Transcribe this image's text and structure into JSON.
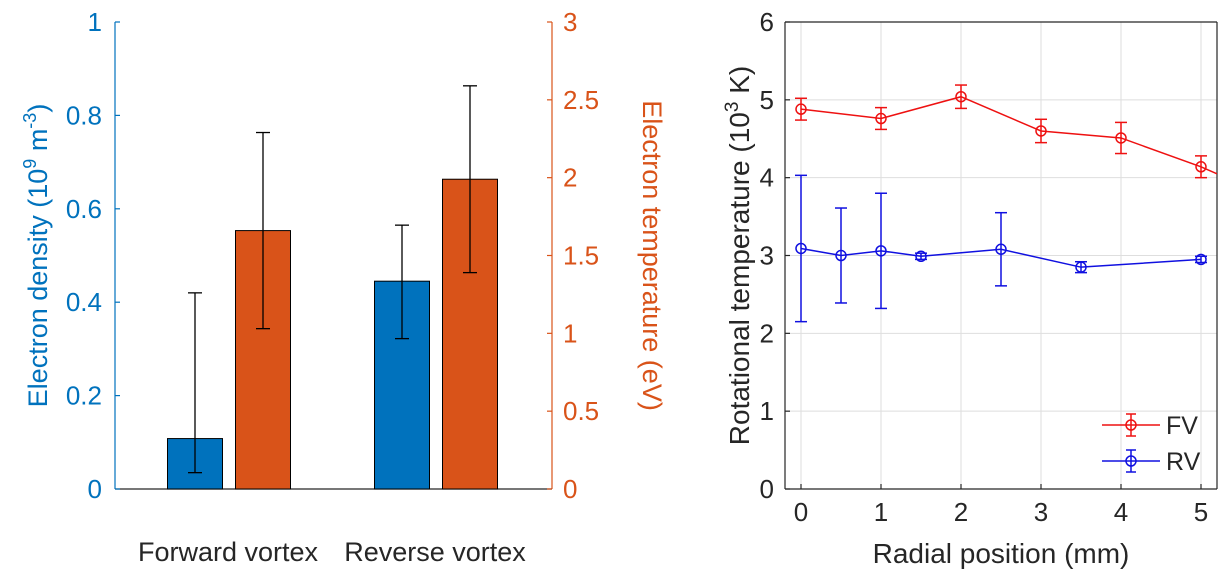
{
  "chart_data": [
    {
      "type": "bar",
      "categories": [
        "Forward vortex",
        "Reverse vortex"
      ],
      "series": [
        {
          "axis": "left",
          "color": "#0072BD",
          "values": [
            0.108,
            0.445
          ],
          "error_low": [
            0.035,
            0.322
          ],
          "error_high": [
            0.42,
            0.565
          ]
        },
        {
          "axis": "right",
          "color": "#D95319",
          "values": [
            1.66,
            1.99
          ],
          "error_low": [
            1.03,
            1.39
          ],
          "error_high": [
            2.29,
            2.59
          ]
        }
      ],
      "y_left": {
        "label_parts": [
          "Electron density (10",
          "9",
          " m",
          "-3",
          ")"
        ],
        "lim": [
          0,
          1
        ],
        "ticks": [
          "0",
          "0.2",
          "0.4",
          "0.6",
          "0.8",
          "1"
        ],
        "color": "#0072BD"
      },
      "y_right": {
        "label": "Electron temperature (eV)",
        "lim": [
          0,
          3
        ],
        "ticks": [
          "0",
          "0.5",
          "1",
          "1.5",
          "2",
          "2.5",
          "3"
        ],
        "color": "#D95319"
      }
    },
    {
      "type": "line",
      "xlabel": "Radial position (mm)",
      "ylabel_parts": [
        "Rotational temperature (10",
        "3",
        " K)"
      ],
      "xlim": [
        -0.2,
        5.2
      ],
      "ylim": [
        0,
        6
      ],
      "xticks": [
        "0",
        "1",
        "2",
        "3",
        "4",
        "5"
      ],
      "yticks": [
        "0",
        "1",
        "2",
        "3",
        "4",
        "5",
        "6"
      ],
      "grid": true,
      "legend_position": "bottom-right",
      "series": [
        {
          "name": "FV",
          "color": "#EE1111",
          "x": [
            0,
            1,
            2,
            3,
            4,
            5
          ],
          "y": [
            4.88,
            4.76,
            5.04,
            4.6,
            4.51,
            4.14
          ],
          "err": [
            0.14,
            0.14,
            0.15,
            0.15,
            0.2,
            0.14
          ],
          "tail_x": 5.2,
          "tail_y": 4.05
        },
        {
          "name": "RV",
          "color": "#1010E0",
          "x": [
            0,
            0.5,
            1,
            1.5,
            2.5,
            3.5,
            5
          ],
          "y": [
            3.09,
            3.0,
            3.06,
            2.99,
            3.08,
            2.85,
            2.95
          ],
          "err": [
            0.94,
            0.61,
            0.74,
            0.04,
            0.47,
            0.07,
            0.04
          ]
        }
      ]
    }
  ]
}
